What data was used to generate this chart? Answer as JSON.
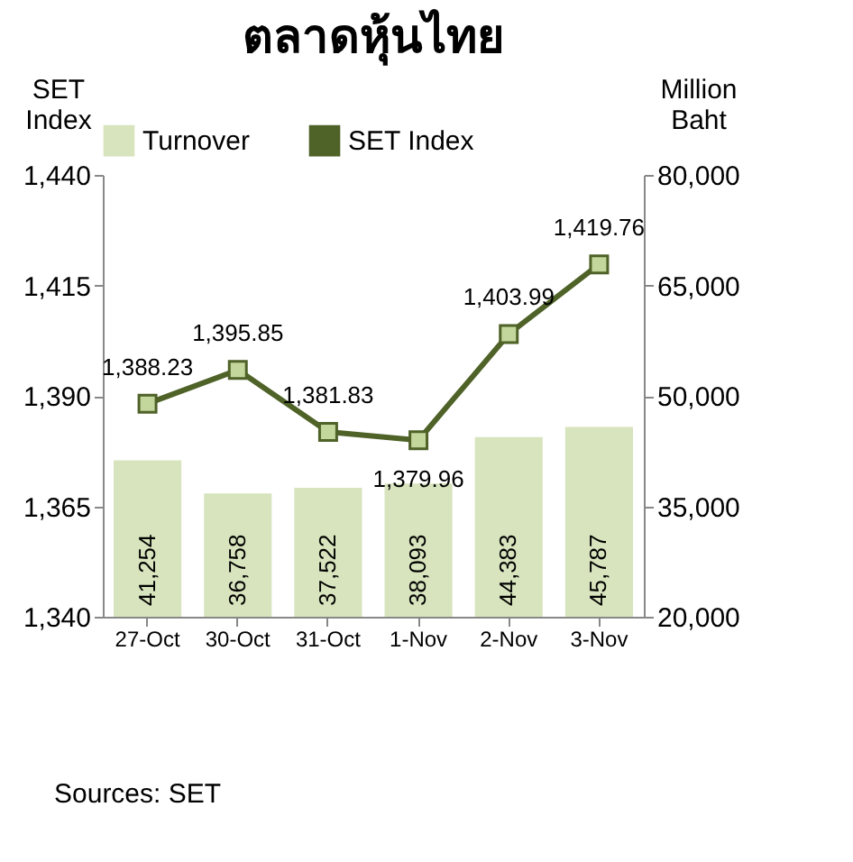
{
  "chart_data": {
    "type": "bar",
    "title": "ตลาดหุ้นไทย",
    "ylabel": "SET Index",
    "y2label": "Million Baht",
    "categories": [
      "27-Oct",
      "30-Oct",
      "31-Oct",
      "1-Nov",
      "2-Nov",
      "3-Nov"
    ],
    "series": [
      {
        "name": "Turnover",
        "axis": "y2",
        "color": "#d7e4bd",
        "values": [
          41254,
          36758,
          37522,
          38093,
          44383,
          45787
        ],
        "value_labels": [
          "41,254",
          "36,758",
          "37,522",
          "38,093",
          "44,383",
          "45,787"
        ]
      },
      {
        "name": "SET Index",
        "type": "line",
        "color": "#4f6228",
        "values": [
          1388.23,
          1395.85,
          1381.83,
          1379.96,
          1403.99,
          1419.76
        ],
        "value_labels": [
          "1,388.23",
          "1,395.85",
          "1,381.83",
          "1,379.96",
          "1,403.99",
          "1,419.76"
        ]
      }
    ],
    "ylim": [
      1340,
      1440
    ],
    "yticks": [
      {
        "value": 1340,
        "label": "1,340"
      },
      {
        "value": 1365,
        "label": "1,365"
      },
      {
        "value": 1390,
        "label": "1,390"
      },
      {
        "value": 1415,
        "label": "1,415"
      },
      {
        "value": 1440,
        "label": "1,440"
      }
    ],
    "y2lim": [
      20000,
      80000
    ],
    "y2ticks": [
      {
        "value": 20000,
        "label": "20,000"
      },
      {
        "value": 35000,
        "label": "35,000"
      },
      {
        "value": 50000,
        "label": "50,000"
      },
      {
        "value": 65000,
        "label": "65,000"
      },
      {
        "value": 80000,
        "label": "80,000"
      }
    ],
    "marker": "square",
    "legend": "top",
    "grid": false,
    "annotations": [
      "Sources: SET"
    ]
  }
}
